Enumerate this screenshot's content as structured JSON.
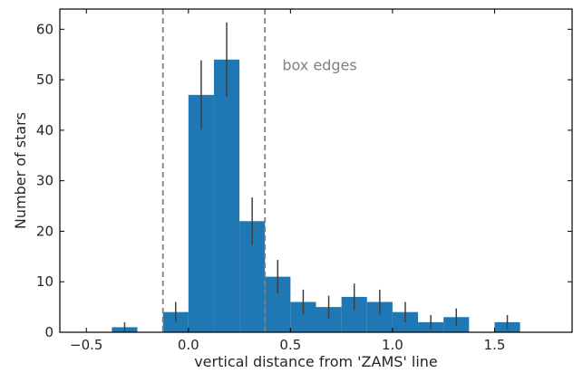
{
  "chart_data": {
    "type": "bar",
    "title": "",
    "xlabel": "vertical distance from 'ZAMS' line",
    "ylabel": "Number of stars",
    "xlim": [
      -0.63,
      1.88
    ],
    "ylim": [
      0,
      64
    ],
    "x_ticks": [
      -0.5,
      0.0,
      0.5,
      1.0,
      1.5
    ],
    "x_tick_labels": [
      "−0.5",
      "0.0",
      "0.5",
      "1.0",
      "1.5"
    ],
    "y_ticks": [
      0,
      10,
      20,
      30,
      40,
      50,
      60
    ],
    "y_tick_labels": [
      "0",
      "10",
      "20",
      "30",
      "40",
      "50",
      "60"
    ],
    "grid": false,
    "bar_color": "#1f77b4",
    "errorbar_color": "#404040",
    "bin_width": 0.125,
    "bins": [
      {
        "left": -0.375,
        "count": 1,
        "err": 1.0
      },
      {
        "left": -0.125,
        "count": 4,
        "err": 2.0
      },
      {
        "left": 0.0,
        "count": 47,
        "err": 6.86
      },
      {
        "left": 0.125,
        "count": 54,
        "err": 7.35
      },
      {
        "left": 0.25,
        "count": 22,
        "err": 4.69
      },
      {
        "left": 0.375,
        "count": 11,
        "err": 3.32
      },
      {
        "left": 0.5,
        "count": 6,
        "err": 2.45
      },
      {
        "left": 0.625,
        "count": 5,
        "err": 2.24
      },
      {
        "left": 0.75,
        "count": 7,
        "err": 2.65
      },
      {
        "left": 0.875,
        "count": 6,
        "err": 2.45
      },
      {
        "left": 1.0,
        "count": 4,
        "err": 2.0
      },
      {
        "left": 1.125,
        "count": 2,
        "err": 1.41
      },
      {
        "left": 1.25,
        "count": 3,
        "err": 1.73
      },
      {
        "left": 1.5,
        "count": 2,
        "err": 1.41
      }
    ],
    "box_edges": {
      "x": [
        -0.125,
        0.375
      ],
      "label": "box edges",
      "color": "#808080"
    },
    "annotation_position": {
      "x": 0.46,
      "y": 53
    }
  }
}
